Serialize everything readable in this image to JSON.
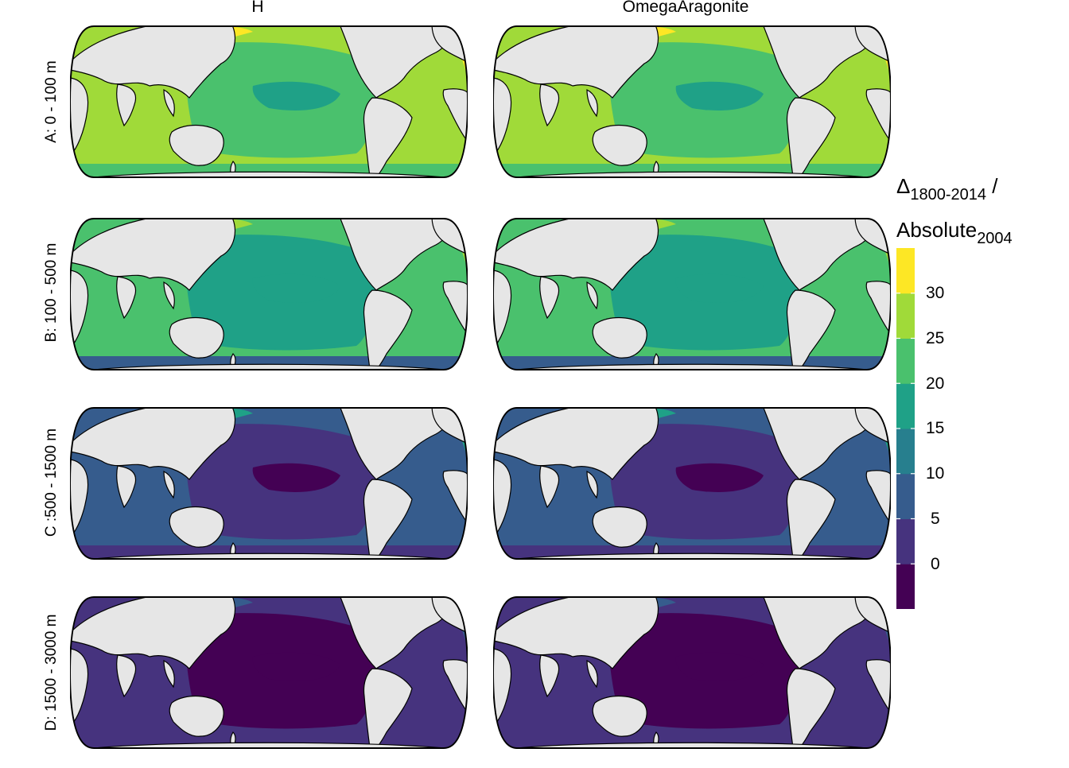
{
  "columns": [
    "H",
    "OmegaAragonite"
  ],
  "rows": [
    "A: 0 - 100 m",
    "B: 100 - 500 m",
    "C :500 - 1500 m",
    "D: 1500 - 3000 m"
  ],
  "legend": {
    "title_line1_main": "Δ",
    "title_line1_sub": "1800-2014",
    "title_line1_tail": " /",
    "title_line2_main": "Absolute",
    "title_line2_sub": "2004",
    "ticks": [
      "30",
      "25",
      "20",
      "15",
      "10",
      "5",
      "0"
    ],
    "bins": [
      {
        "range": [
          -5,
          0
        ],
        "color": "#440154"
      },
      {
        "range": [
          0,
          5
        ],
        "color": "#46337e"
      },
      {
        "range": [
          5,
          10
        ],
        "color": "#365c8d"
      },
      {
        "range": [
          10,
          15
        ],
        "color": "#277f8e"
      },
      {
        "range": [
          15,
          20
        ],
        "color": "#1fa187"
      },
      {
        "range": [
          20,
          25
        ],
        "color": "#4ac16d"
      },
      {
        "range": [
          25,
          30
        ],
        "color": "#a0da39"
      },
      {
        "range": [
          30,
          35
        ],
        "color": "#fde725"
      }
    ]
  },
  "map_colors": {
    "land": "#e6e6e6",
    "coast": "#000000"
  },
  "panel_fields": [
    {
      "base": "#a0da39",
      "pacific": "#4ac16d",
      "south": "#4ac16d",
      "accent": "#fde725",
      "center": "#1fa187"
    },
    {
      "base": "#4ac16d",
      "pacific": "#1fa187",
      "south": "#365c8d",
      "accent": "#a0da39",
      "center": "#1fa187"
    },
    {
      "base": "#365c8d",
      "pacific": "#46337e",
      "south": "#46337e",
      "accent": "#1fa187",
      "center": "#440154"
    },
    {
      "base": "#46337e",
      "pacific": "#440154",
      "south": "#46337e",
      "accent": "#365c8d",
      "center": "#440154"
    }
  ]
}
